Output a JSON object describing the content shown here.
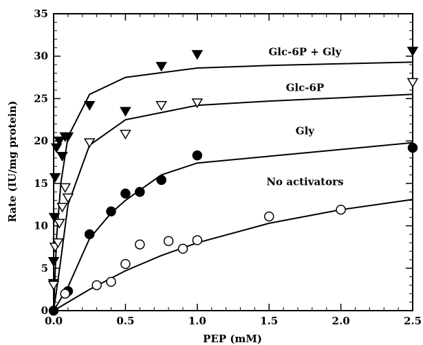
{
  "chart_data": {
    "type": "scatter",
    "title": "",
    "xlabel": "PEP (mM)",
    "ylabel": "Rate (IU/mg protein)",
    "xlim": [
      0,
      2.5
    ],
    "ylim": [
      0,
      35
    ],
    "xticks": [
      "0.0",
      "0.5",
      "1.0",
      "1.5",
      "2.0",
      "2.5"
    ],
    "yticks": [
      "0",
      "5",
      "10",
      "15",
      "20",
      "25",
      "30",
      "35"
    ],
    "grid": false,
    "legend": "none; series labelled directly on the plot",
    "series": [
      {
        "name": "Glc-6P + Gly",
        "marker": "filled-triangle-down",
        "points": [
          [
            0,
            3.2
          ],
          [
            0,
            5.8
          ],
          [
            0.005,
            11
          ],
          [
            0.01,
            15.7
          ],
          [
            0.02,
            19.2
          ],
          [
            0.04,
            20
          ],
          [
            0.06,
            18.2
          ],
          [
            0.08,
            20.5
          ],
          [
            0.1,
            20.5
          ],
          [
            0.25,
            24.2
          ],
          [
            0.5,
            23.5
          ],
          [
            0.75,
            28.8
          ],
          [
            1.0,
            30.2
          ],
          [
            2.5,
            30.6
          ]
        ],
        "fit": [
          [
            0,
            0
          ],
          [
            0.02,
            8.5
          ],
          [
            0.05,
            15
          ],
          [
            0.1,
            20.5
          ],
          [
            0.25,
            25.5
          ],
          [
            0.5,
            27.5
          ],
          [
            1.0,
            28.6
          ],
          [
            1.5,
            28.9
          ],
          [
            2.0,
            29.1
          ],
          [
            2.5,
            29.3
          ]
        ]
      },
      {
        "name": "Glc-6P",
        "marker": "open-triangle-down",
        "points": [
          [
            0,
            3
          ],
          [
            0.01,
            7.5
          ],
          [
            0.03,
            8
          ],
          [
            0.04,
            10.3
          ],
          [
            0.06,
            12.2
          ],
          [
            0.08,
            14.5
          ],
          [
            0.1,
            13.3
          ],
          [
            0.25,
            19.8
          ],
          [
            0.5,
            20.8
          ],
          [
            0.75,
            24.2
          ],
          [
            1.0,
            24.5
          ],
          [
            2.5,
            26.9
          ]
        ],
        "fit": [
          [
            0,
            0
          ],
          [
            0.05,
            6
          ],
          [
            0.1,
            12.5
          ],
          [
            0.25,
            19.5
          ],
          [
            0.5,
            22.5
          ],
          [
            1.0,
            24.2
          ],
          [
            1.5,
            24.7
          ],
          [
            2.0,
            25.1
          ],
          [
            2.5,
            25.5
          ]
        ]
      },
      {
        "name": "Gly",
        "marker": "filled-circle",
        "points": [
          [
            0,
            0
          ],
          [
            0.1,
            2.3
          ],
          [
            0.25,
            9
          ],
          [
            0.4,
            11.7
          ],
          [
            0.5,
            13.8
          ],
          [
            0.6,
            14
          ],
          [
            0.75,
            15.4
          ],
          [
            1.0,
            18.3
          ],
          [
            2.5,
            19.2
          ]
        ],
        "fit": [
          [
            0,
            0
          ],
          [
            0.1,
            2.8
          ],
          [
            0.25,
            8.5
          ],
          [
            0.4,
            11.5
          ],
          [
            0.5,
            13
          ],
          [
            0.75,
            16
          ],
          [
            1.0,
            17.4
          ],
          [
            1.5,
            18.2
          ],
          [
            2.0,
            19
          ],
          [
            2.5,
            19.8
          ]
        ]
      },
      {
        "name": "No activators",
        "marker": "open-circle",
        "points": [
          [
            0.08,
            2
          ],
          [
            0.3,
            3
          ],
          [
            0.4,
            3.4
          ],
          [
            0.5,
            5.5
          ],
          [
            0.6,
            7.8
          ],
          [
            0.8,
            8.2
          ],
          [
            0.9,
            7.3
          ],
          [
            1.0,
            8.3
          ],
          [
            1.5,
            11.1
          ],
          [
            2.0,
            11.9
          ]
        ],
        "fit": [
          [
            0,
            0
          ],
          [
            0.25,
            2.5
          ],
          [
            0.5,
            4.7
          ],
          [
            0.75,
            6.5
          ],
          [
            1.0,
            8
          ],
          [
            1.5,
            10.3
          ],
          [
            2.0,
            11.9
          ],
          [
            2.5,
            13.1
          ]
        ]
      }
    ],
    "annotations": [
      {
        "text": "Glc-6P + Gly",
        "x": 1.75,
        "y": 30.1
      },
      {
        "text": "Glc-6P",
        "x": 1.75,
        "y": 25.9
      },
      {
        "text": "Gly",
        "x": 1.75,
        "y": 20.8
      },
      {
        "text": "No activators",
        "x": 1.75,
        "y": 14.8
      }
    ]
  }
}
